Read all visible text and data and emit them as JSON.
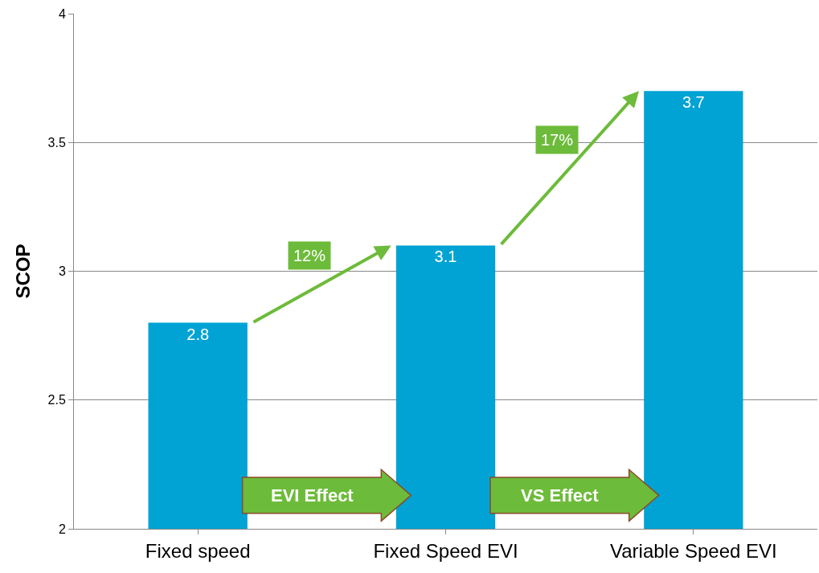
{
  "chart_data": {
    "type": "bar",
    "ylabel": "SCOP",
    "categories": [
      "Fixed speed",
      "Fixed Speed EVI",
      "Variable Speed EVI"
    ],
    "values": [
      2.8,
      3.1,
      3.7
    ],
    "color": "#00a3d3",
    "ylim": [
      2,
      4
    ],
    "yticks": [
      2,
      2.5,
      3,
      3.5,
      4
    ],
    "grid": "y",
    "legend": false,
    "data_labels": true,
    "annotations": [
      "12%",
      "17%",
      "EVI Effect",
      "VS Effect"
    ]
  }
}
